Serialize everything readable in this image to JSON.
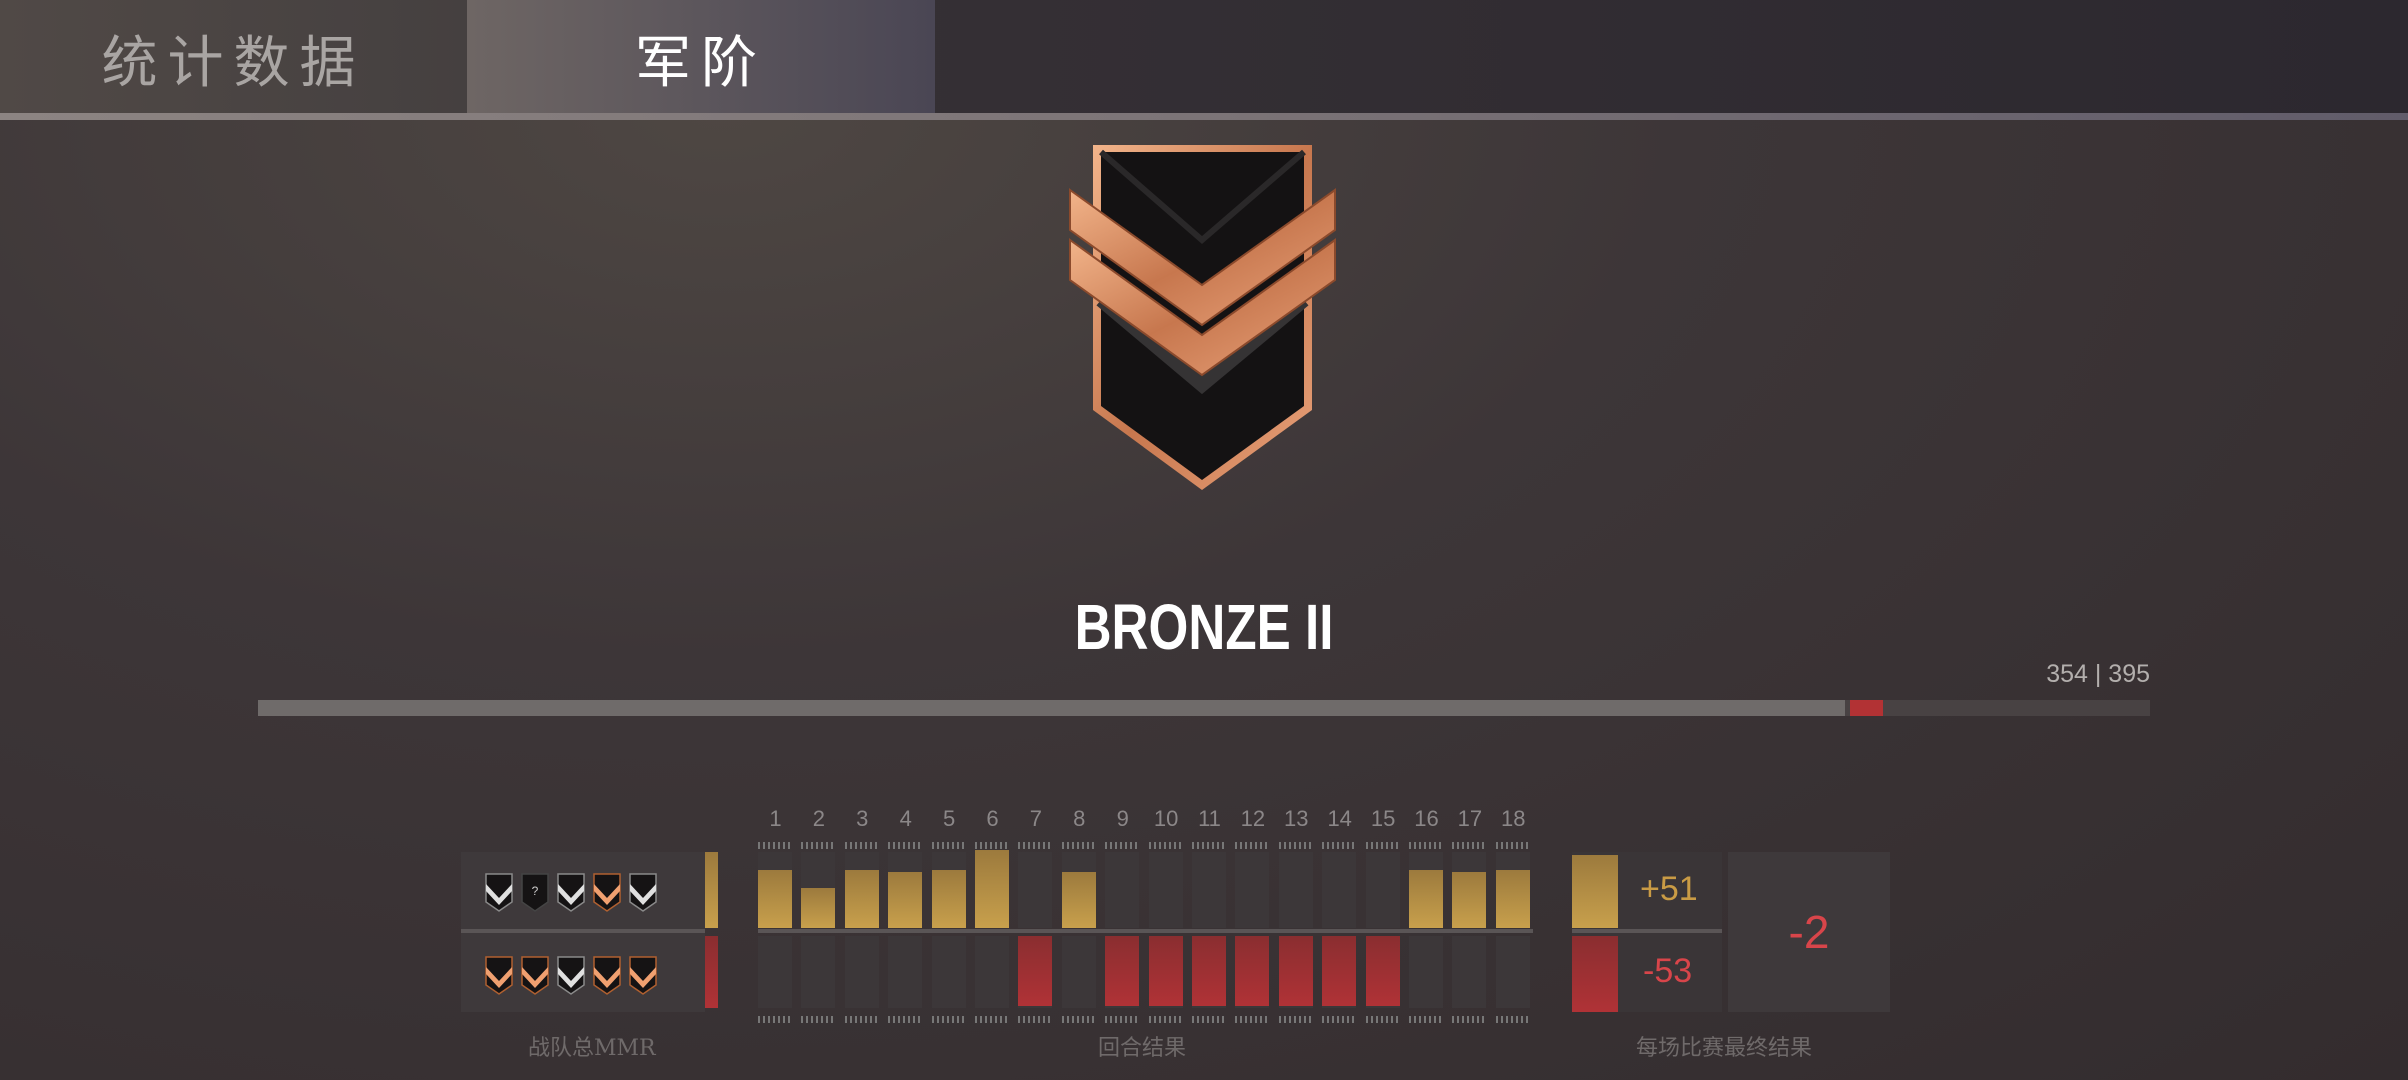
{
  "tabs": [
    {
      "label": "统计数据",
      "active": false
    },
    {
      "label": "军阶",
      "active": true
    }
  ],
  "rank": {
    "name": "BRONZE II",
    "current": 354,
    "next": 395,
    "label": "354 | 395",
    "progress_fraction": 0.896,
    "loss_fraction": 0.02
  },
  "colors": {
    "gold": "#c8a04c",
    "red": "#b03236",
    "delta_gold": "#c99b45",
    "delta_red": "#d8454a"
  },
  "mmr": {
    "label": "战队总MMR",
    "team_icons": [
      "silver",
      "unknown",
      "silver",
      "bronze",
      "silver"
    ],
    "enemy_icons": [
      "bronze",
      "bronze",
      "silver",
      "bronze",
      "bronze"
    ],
    "unknown_glyph": "?"
  },
  "rounds": {
    "label": "回合结果",
    "numbers": [
      "1",
      "2",
      "3",
      "4",
      "5",
      "6",
      "7",
      "8",
      "9",
      "10",
      "11",
      "12",
      "13",
      "14",
      "15",
      "16",
      "17",
      "18"
    ],
    "won": [
      58,
      40,
      58,
      56,
      58,
      78,
      0,
      56,
      0,
      0,
      0,
      0,
      0,
      0,
      0,
      58,
      56,
      58
    ],
    "lost": [
      0,
      0,
      0,
      0,
      0,
      0,
      70,
      0,
      70,
      70,
      70,
      70,
      70,
      70,
      70,
      0,
      0,
      0
    ]
  },
  "result": {
    "label": "每场比赛最终结果",
    "gain": "+51",
    "loss": "-53",
    "net": "-2"
  }
}
